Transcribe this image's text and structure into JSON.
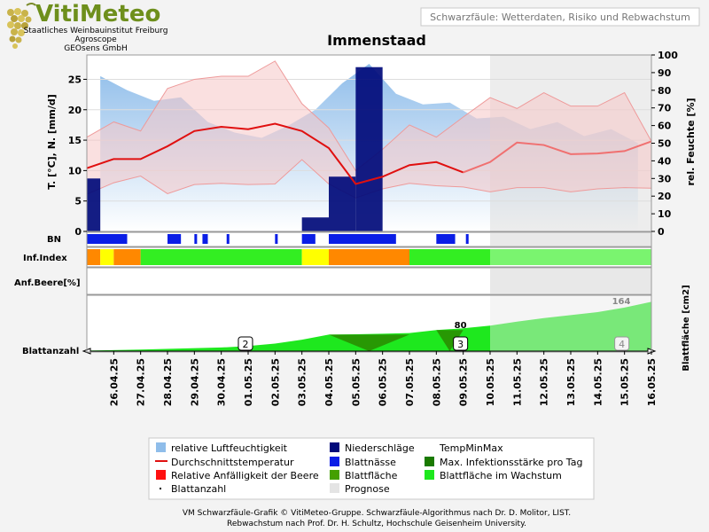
{
  "header": {
    "logo_text": "VitiMeteo",
    "org_lines": [
      "Staatliches Weinbauinstitut Freiburg",
      "Agroscope",
      "GEOsens GmbH"
    ],
    "subtitle": "Schwarzfäule: Wetterdaten, Risiko und Rebwachstum",
    "station": "Immenstaad"
  },
  "colors": {
    "humidity": "#8fbdea",
    "precip": "#000a7a",
    "temp": "#e01010",
    "tempband": "#f6c6c6",
    "leafwet": "#0a1ee6",
    "risk_yellow": "#ffff00",
    "risk_orange": "#ff8800",
    "risk_green": "#33ee22",
    "leaf_dark": "#2a8a00",
    "leaf_area": "#1ee81e",
    "forecast": "#e4e4e4"
  },
  "chart_data": {
    "type": "line",
    "title": "Immenstaad",
    "dates": [
      "26.04.25",
      "27.04.25",
      "28.04.25",
      "29.04.25",
      "30.04.25",
      "01.05.25",
      "02.05.25",
      "03.05.25",
      "04.05.25",
      "05.05.25",
      "06.05.25",
      "07.05.25",
      "08.05.25",
      "09.05.25",
      "10.05.25",
      "11.05.25",
      "12.05.25",
      "13.05.25",
      "14.05.25",
      "15.05.25",
      "16.05.25"
    ],
    "forecast_start": "10.05.25",
    "y_left": {
      "label": "T. [°C], N. [mm/d]",
      "range": [
        0,
        29
      ],
      "ticks": [
        0,
        5,
        10,
        15,
        20,
        25
      ]
    },
    "y_right": {
      "label": "rel. Feuchte [%]",
      "range": [
        0,
        100
      ],
      "ticks": [
        0,
        10,
        20,
        30,
        40,
        50,
        60,
        70,
        80,
        90,
        100
      ]
    },
    "humidity_x": [
      25.5,
      26.5,
      27.5,
      28.5,
      29.5,
      30.5,
      31.5,
      32.5,
      33.5,
      34.5,
      35.5,
      36.5,
      37.5,
      38.5,
      39.5,
      40.5,
      41.5,
      42.5,
      43.5,
      44.5,
      45.5
    ],
    "humidity": [
      88,
      80,
      74,
      76,
      62,
      56,
      53,
      60,
      69,
      84,
      95,
      78,
      72,
      73,
      64,
      65,
      58,
      62,
      54,
      58,
      50
    ],
    "temp_x": [
      25,
      26,
      27,
      28,
      29,
      30,
      31,
      32,
      33,
      34,
      35,
      36,
      37,
      38,
      39,
      40,
      41,
      42,
      43,
      44,
      45,
      46
    ],
    "temp_avg": [
      10.4,
      11.9,
      11.9,
      14.0,
      16.5,
      17.2,
      16.8,
      17.7,
      16.5,
      13.7,
      7.8,
      9.0,
      10.9,
      11.4,
      9.7,
      11.4,
      14.6,
      14.2,
      12.7,
      12.8,
      13.2,
      14.8
    ],
    "temp_min": [
      6.1,
      8.0,
      9.1,
      6.2,
      7.7,
      7.9,
      7.7,
      7.8,
      11.8,
      7.8,
      5.5,
      7.0,
      7.9,
      7.5,
      7.3,
      6.5,
      7.2,
      7.2,
      6.5,
      7.0,
      7.2,
      7.1
    ],
    "temp_max": [
      15.5,
      18.0,
      16.5,
      23.5,
      25.0,
      25.5,
      25.5,
      28.0,
      21.0,
      17.0,
      10.0,
      13.5,
      17.5,
      15.5,
      18.8,
      22.0,
      20.2,
      22.8,
      20.6,
      20.6,
      22.8,
      14.8
    ],
    "precip": [
      {
        "from": 25.0,
        "to": 25.5,
        "value": 8.7
      },
      {
        "from": 33.0,
        "to": 34.0,
        "value": 2.3
      },
      {
        "from": 34.0,
        "to": 35.0,
        "value": 9.0
      },
      {
        "from": 35.0,
        "to": 36.0,
        "value": 27.0
      }
    ],
    "leaf_wetness": [
      [
        25,
        26.5
      ],
      [
        28,
        28.5
      ],
      [
        29,
        29.1
      ],
      [
        29.3,
        29.5
      ],
      [
        30.2,
        30.3
      ],
      [
        32.0,
        32.1
      ],
      [
        33.0,
        33.5
      ],
      [
        34.0,
        36.5
      ],
      [
        38.0,
        38.7
      ],
      [
        39.1,
        39.2
      ]
    ],
    "infection_index": [
      {
        "from": 25.0,
        "to": 25.5,
        "level": "orange"
      },
      {
        "from": 25.5,
        "to": 26.0,
        "level": "yellow"
      },
      {
        "from": 26.0,
        "to": 27.0,
        "level": "orange"
      },
      {
        "from": 27.0,
        "to": 33.0,
        "level": "green"
      },
      {
        "from": 33.0,
        "to": 34.0,
        "level": "yellow"
      },
      {
        "from": 34.0,
        "to": 37.0,
        "level": "orange"
      },
      {
        "from": 37.0,
        "to": 46.0,
        "level": "green"
      }
    ],
    "leaf_area_x": [
      25,
      27,
      30,
      31,
      32,
      33,
      34,
      35,
      36,
      37,
      38,
      39,
      40,
      41,
      42,
      43,
      44,
      45,
      46
    ],
    "leaf_area": [
      2,
      5,
      12,
      17,
      25,
      38,
      55,
      56,
      58,
      60,
      70,
      76,
      85,
      98,
      110,
      120,
      130,
      145,
      164
    ],
    "leaf_area_max": 180,
    "leaf_area_label": "164",
    "infection_max_triangles": [
      [
        34,
        37
      ],
      [
        38,
        39
      ]
    ],
    "leaf_count_marks": [
      {
        "x": 30.9,
        "label": "2"
      },
      {
        "x": 38.9,
        "label": "3"
      },
      {
        "x": 44.9,
        "label": "4"
      }
    ],
    "leaf_count_value_label": "80",
    "rows": {
      "bn": "BN",
      "inf": "Inf.Index",
      "anf": "Anf.Beere[%]",
      "blattanzahl": "Blattanzahl",
      "blattflaeche": "Blattfläche [cm2]"
    }
  },
  "legend": {
    "items": [
      "relative Luftfeuchtigkeit",
      "Niederschläge",
      "TempMinMax",
      "Durchschnittstemperatur",
      "Blattnässe",
      "Max. Infektionsstärke pro Tag",
      "Relative Anfälligkeit der Beere",
      "Blattfläche",
      "Blattfläche im Wachstum",
      "Blattanzahl",
      "Prognose"
    ]
  },
  "footer": {
    "line1": "VM Schwarzfäule-Grafik © VitiMeteo-Gruppe. Schwarzfäule-Algorithmus nach Dr. D. Molitor, LIST.",
    "line2": "Rebwachstum nach Prof. Dr. H. Schultz, Hochschule Geisenheim University."
  }
}
